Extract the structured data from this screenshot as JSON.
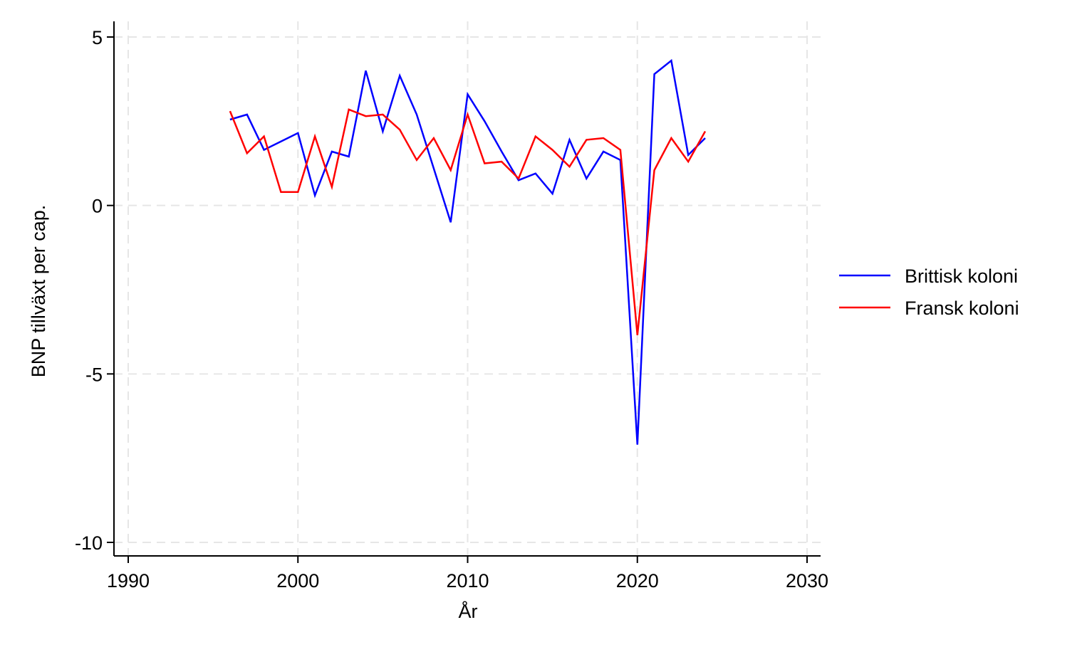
{
  "chart_data": {
    "type": "line",
    "title": "",
    "xlabel": "År",
    "ylabel": "BNP tillväxt per cap.",
    "xlim": [
      1990,
      2030
    ],
    "ylim": [
      -10,
      5
    ],
    "x_ticks": [
      1990,
      2000,
      2010,
      2020,
      2030
    ],
    "y_ticks": [
      5,
      0,
      -5,
      -10
    ],
    "grid": true,
    "legend_position": "right",
    "x": [
      1996,
      1997,
      1998,
      1999,
      2000,
      2001,
      2002,
      2003,
      2004,
      2005,
      2006,
      2007,
      2008,
      2009,
      2010,
      2011,
      2012,
      2013,
      2014,
      2015,
      2016,
      2017,
      2018,
      2019,
      2020,
      2021,
      2022,
      2023,
      2024
    ],
    "series": [
      {
        "name": "Brittisk koloni",
        "color": "#0000ff",
        "values": [
          2.55,
          2.7,
          1.65,
          1.9,
          2.15,
          0.3,
          1.6,
          1.45,
          4.0,
          2.2,
          3.85,
          2.7,
          1.1,
          -0.5,
          3.3,
          2.5,
          1.6,
          0.75,
          0.95,
          0.35,
          1.95,
          0.8,
          1.6,
          1.35,
          -7.1,
          3.9,
          4.3,
          1.5,
          2.0
        ]
      },
      {
        "name": "Fransk koloni",
        "color": "#ff0000",
        "values": [
          2.8,
          1.55,
          2.05,
          0.4,
          0.4,
          2.05,
          0.55,
          2.85,
          2.65,
          2.7,
          2.25,
          1.35,
          2.0,
          1.05,
          2.7,
          1.25,
          1.3,
          0.8,
          2.05,
          1.65,
          1.15,
          1.95,
          2.0,
          1.65,
          -3.85,
          1.05,
          2.0,
          1.3,
          2.2
        ]
      }
    ]
  }
}
